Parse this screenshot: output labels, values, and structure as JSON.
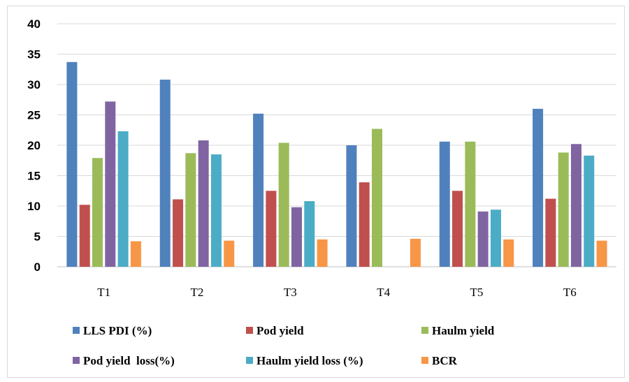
{
  "chart_data": {
    "type": "bar",
    "categories": [
      "T1",
      "T2",
      "T3",
      "T4",
      "T5",
      "T6"
    ],
    "series": [
      {
        "name": "LLS PDI (%)",
        "color": "#4f81bd",
        "values": [
          33.7,
          30.8,
          25.2,
          20.0,
          20.6,
          26.0
        ]
      },
      {
        "name": "Pod yield",
        "color": "#c0504d",
        "values": [
          10.2,
          11.1,
          12.5,
          13.9,
          12.5,
          11.2
        ]
      },
      {
        "name": "Haulm yield",
        "color": "#9bbb59",
        "values": [
          17.9,
          18.7,
          20.4,
          22.7,
          20.6,
          18.8
        ]
      },
      {
        "name": "Pod yield  loss(%)",
        "color": "#8064a2",
        "values": [
          27.2,
          20.8,
          9.8,
          0,
          9.1,
          20.2
        ]
      },
      {
        "name": "Haulm yield loss (%)",
        "color": "#4bacc6",
        "values": [
          22.3,
          18.5,
          10.8,
          0,
          9.4,
          18.3
        ]
      },
      {
        "name": "BCR",
        "color": "#f79646",
        "values": [
          4.2,
          4.3,
          4.5,
          4.6,
          4.5,
          4.3
        ]
      }
    ],
    "ylim": [
      0,
      40
    ],
    "yticks": [
      "0",
      "5",
      "10",
      "15",
      "20",
      "25",
      "30",
      "35",
      "40"
    ],
    "grid": true,
    "legend_position": "bottom",
    "title": "",
    "xlabel": "",
    "ylabel": ""
  }
}
